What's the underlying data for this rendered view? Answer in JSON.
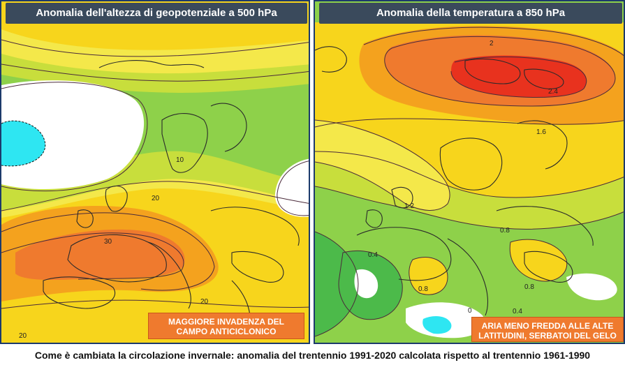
{
  "left_panel": {
    "title": "Anomalia dell'altezza di geopotenziale a 500 hPa",
    "note": "MAGGIORE INVADENZA DEL CAMPO ANTICICLONICO",
    "contour_labels": [
      "10",
      "20",
      "30",
      "20",
      "20"
    ]
  },
  "right_panel": {
    "title": "Anomalia della temperatura a 850 hPa",
    "note": "ARIA MENO FREDDA ALLE ALTE LATITUDINI, SERBATOI DEL GELO",
    "contour_labels": [
      "2",
      "2.4",
      "1.6",
      "1.2",
      "0.8",
      "0.4",
      "0.8",
      "0.8",
      "0.4",
      "0"
    ]
  },
  "caption": "Come è cambiata la circolazione invernale: anomalia del trentennio 1991-2020 calcolata rispetto al trentennio 1961-1990",
  "colors": {
    "yellow": "#f7d51c",
    "light_yellow": "#f4e84a",
    "yellow_green": "#c8de3c",
    "green": "#8ed14a",
    "dark_green": "#4cba4a",
    "orange": "#f4a21e",
    "dark_orange": "#ef7a2e",
    "red": "#e8321e",
    "white": "#ffffff",
    "cyan": "#2ee6f2",
    "title_bg": "#3a4a5c"
  }
}
